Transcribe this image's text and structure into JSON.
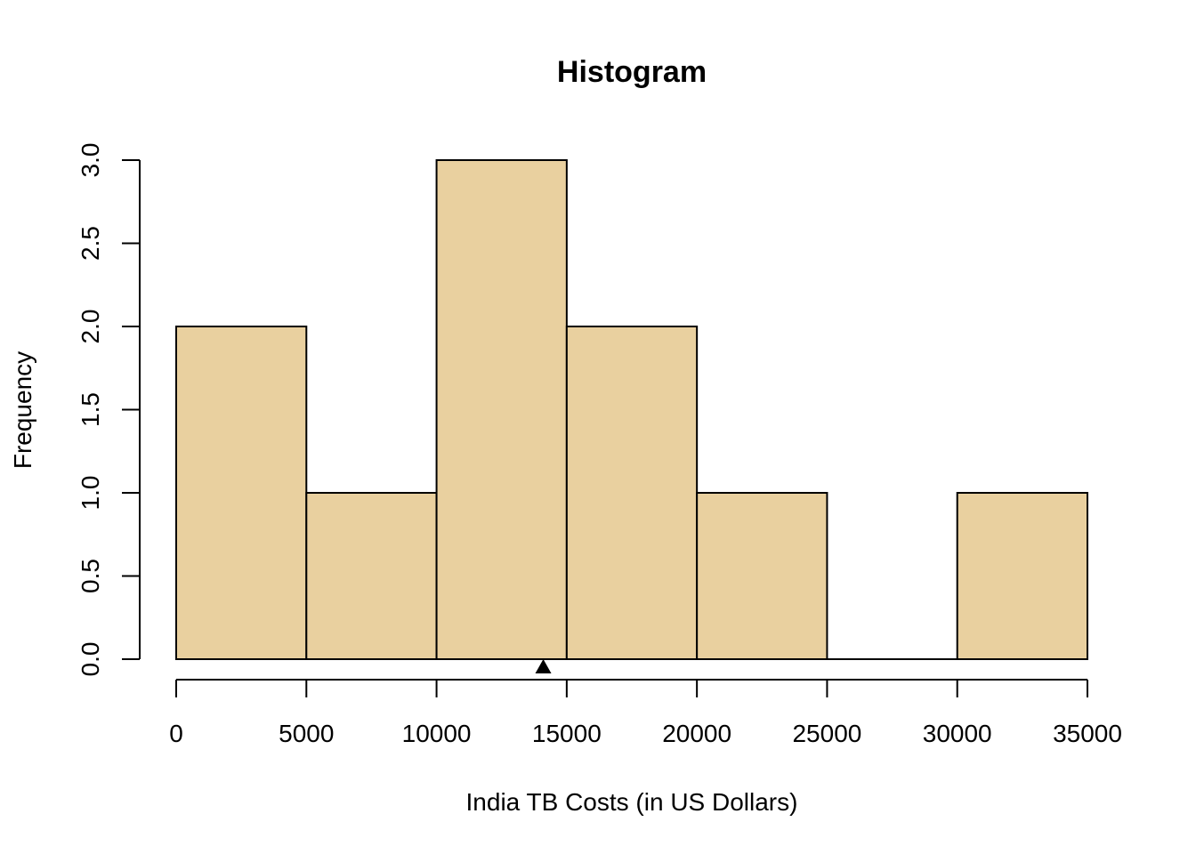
{
  "chart_data": {
    "type": "bar",
    "title": "Histogram",
    "xlabel": "India TB Costs (in US Dollars)",
    "ylabel": "Frequency",
    "bins": [
      {
        "start": 0,
        "end": 5000,
        "count": 2
      },
      {
        "start": 5000,
        "end": 10000,
        "count": 1
      },
      {
        "start": 10000,
        "end": 15000,
        "count": 3
      },
      {
        "start": 15000,
        "end": 20000,
        "count": 2
      },
      {
        "start": 20000,
        "end": 25000,
        "count": 1
      },
      {
        "start": 25000,
        "end": 30000,
        "count": 0
      },
      {
        "start": 30000,
        "end": 35000,
        "count": 1
      }
    ],
    "xlim": [
      0,
      35000
    ],
    "ylim": [
      0,
      3
    ],
    "x_ticks": [
      "0",
      "5000",
      "10000",
      "15000",
      "20000",
      "25000",
      "30000",
      "35000"
    ],
    "y_ticks": [
      "0.0",
      "0.5",
      "1.0",
      "1.5",
      "2.0",
      "2.5",
      "3.0"
    ],
    "marker": {
      "shape": "triangle",
      "x": 14100
    },
    "grid": false,
    "colors": {
      "bar_fill": "#E9D09F",
      "bar_stroke": "#000000",
      "marker": "#000000"
    }
  }
}
